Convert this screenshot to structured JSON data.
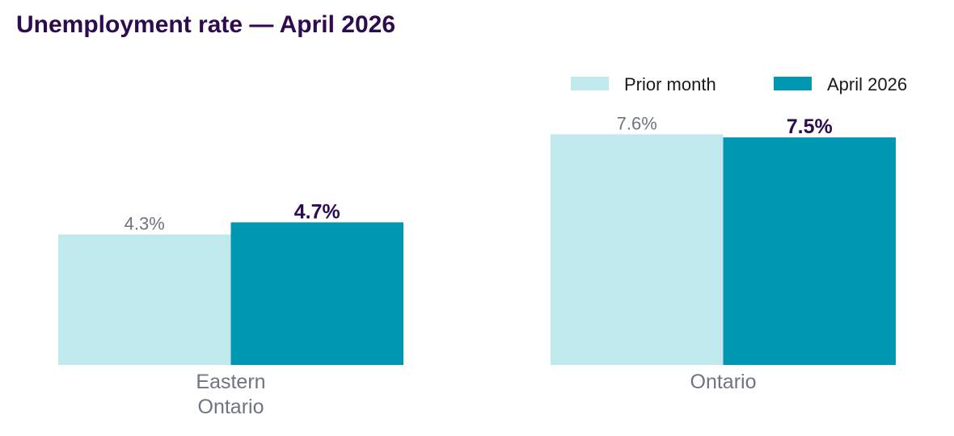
{
  "chart_data": {
    "type": "bar",
    "title": "Unemployment rate — April 2026",
    "categories": [
      [
        "Eastern",
        "Ontario"
      ],
      [
        "Ontario"
      ]
    ],
    "series": [
      {
        "name": "Prior month",
        "values": [
          4.3,
          7.6
        ],
        "labels": [
          "4.3%",
          "7.6%"
        ],
        "color": "#bfe9ec"
      },
      {
        "name": "April 2026",
        "values": [
          4.7,
          7.5
        ],
        "labels": [
          "4.7%",
          "7.5%"
        ],
        "color": "#0097b2"
      }
    ],
    "xlabel": "",
    "ylabel": "",
    "ylim": [
      0,
      9.5
    ],
    "grid": false,
    "legend_position": "top-right",
    "colors": {
      "title": "#2e0a4e",
      "current_label": "#2e0a4e",
      "prior_label": "#6e7480",
      "category_label": "#6e7480"
    }
  }
}
